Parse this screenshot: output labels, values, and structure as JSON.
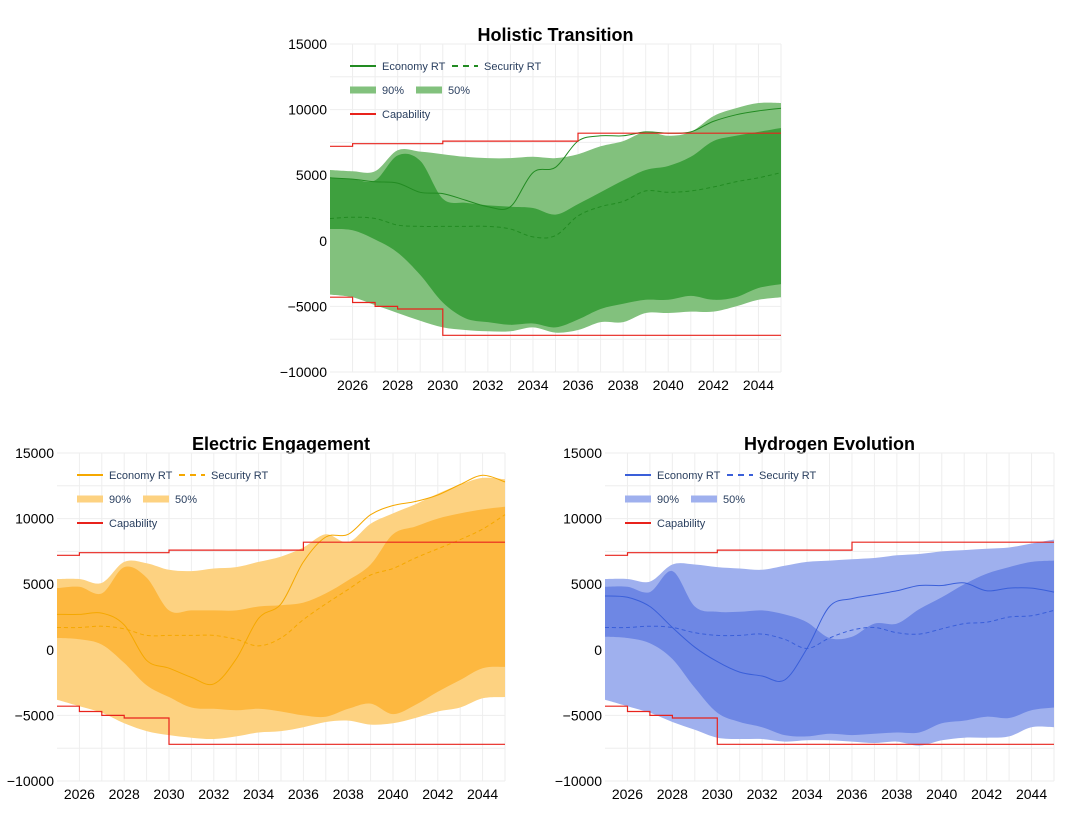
{
  "legend_labels": {
    "economy": "Economy RT",
    "security": "Security RT",
    "band90": "90%",
    "band50": "50%",
    "capability": "Capability"
  },
  "chart_data": [
    {
      "type": "area",
      "title": "Holistic Transition",
      "color": "#228b22",
      "band90_color": "#82c17d",
      "band50_color": "#3ea03e",
      "xlabel": "",
      "ylabel": "",
      "xlim": [
        2025,
        2045
      ],
      "ylim": [
        -10000,
        15000
      ],
      "x_ticks": [
        "2026",
        "2028",
        "2030",
        "2032",
        "2034",
        "2036",
        "2038",
        "2040",
        "2042",
        "2044"
      ],
      "y_ticks": [
        "15000",
        "10000",
        "5000",
        "0",
        "−5000",
        "−10000"
      ],
      "grid": true,
      "legend_position": "top-left",
      "x": [
        2025,
        2026,
        2027,
        2028,
        2029,
        2030,
        2031,
        2032,
        2033,
        2034,
        2035,
        2036,
        2037,
        2038,
        2039,
        2040,
        2041,
        2042,
        2043,
        2044,
        2045
      ],
      "economy": [
        4800,
        4700,
        4500,
        4400,
        3700,
        3600,
        3100,
        2600,
        2600,
        5200,
        5600,
        7600,
        8000,
        8000,
        8300,
        8200,
        8300,
        9100,
        9600,
        9900,
        10100
      ],
      "security": [
        1700,
        1800,
        1700,
        1200,
        1100,
        1100,
        1100,
        1100,
        900,
        300,
        400,
        1900,
        2600,
        3000,
        3800,
        3700,
        3800,
        4100,
        4500,
        4800,
        5200
      ],
      "band90_upper": [
        5400,
        5300,
        5300,
        6900,
        6800,
        6600,
        6400,
        6300,
        6300,
        6400,
        6300,
        6600,
        7200,
        7600,
        8300,
        8000,
        8300,
        9500,
        10100,
        10500,
        10500
      ],
      "band90_lower": [
        -4100,
        -4300,
        -4900,
        -5500,
        -6100,
        -6600,
        -6800,
        -6900,
        -6900,
        -6600,
        -7000,
        -6800,
        -6200,
        -6200,
        -5500,
        -5500,
        -5400,
        -5400,
        -5000,
        -4500,
        -4300
      ],
      "band50_upper": [
        4800,
        4700,
        4600,
        6500,
        6100,
        3200,
        2900,
        2700,
        2600,
        2500,
        2000,
        2800,
        3700,
        4600,
        5400,
        5700,
        6400,
        7600,
        8000,
        8300,
        8600
      ],
      "band50_lower": [
        900,
        800,
        100,
        -900,
        -2600,
        -4700,
        -5900,
        -6200,
        -6400,
        -6300,
        -6600,
        -6000,
        -5200,
        -4800,
        -4500,
        -4500,
        -4200,
        -4500,
        -4300,
        -3600,
        -3300
      ],
      "capability": [
        [
          2025,
          7200
        ],
        [
          2026,
          7200
        ],
        [
          2026,
          7400
        ],
        [
          2030,
          7400
        ],
        [
          2030,
          7600
        ],
        [
          2036,
          7600
        ],
        [
          2036,
          8200
        ],
        [
          2045,
          8200
        ]
      ],
      "capability_lower": [
        [
          2025,
          -4300
        ],
        [
          2026,
          -4300
        ],
        [
          2026,
          -4700
        ],
        [
          2027,
          -4700
        ],
        [
          2027,
          -5000
        ],
        [
          2028,
          -5000
        ],
        [
          2028,
          -5200
        ],
        [
          2030,
          -5200
        ],
        [
          2030,
          -7200
        ],
        [
          2045,
          -7200
        ]
      ]
    },
    {
      "type": "area",
      "title": "Electric Engagement",
      "color": "#f5a800",
      "band90_color": "#fdd281",
      "band50_color": "#fdb840",
      "xlabel": "",
      "ylabel": "",
      "xlim": [
        2025,
        2045
      ],
      "ylim": [
        -10000,
        15000
      ],
      "x_ticks": [
        "2026",
        "2028",
        "2030",
        "2032",
        "2034",
        "2036",
        "2038",
        "2040",
        "2042",
        "2044"
      ],
      "y_ticks": [
        "15000",
        "10000",
        "5000",
        "0",
        "−5000",
        "−10000"
      ],
      "grid": true,
      "legend_position": "top-left",
      "x": [
        2025,
        2026,
        2027,
        2028,
        2029,
        2030,
        2031,
        2032,
        2033,
        2034,
        2035,
        2036,
        2037,
        2038,
        2039,
        2040,
        2041,
        2042,
        2043,
        2044,
        2045
      ],
      "economy": [
        2700,
        2700,
        2800,
        1900,
        -800,
        -1400,
        -2100,
        -2600,
        -700,
        2400,
        3500,
        6700,
        8600,
        8800,
        10300,
        11000,
        11300,
        11800,
        12600,
        13300,
        12800
      ],
      "security": [
        1700,
        1700,
        1800,
        1600,
        1100,
        1100,
        1100,
        1100,
        800,
        300,
        900,
        2300,
        3500,
        4600,
        5700,
        6200,
        7000,
        7700,
        8400,
        9200,
        10300
      ],
      "band90_upper": [
        5400,
        5400,
        5100,
        6700,
        6600,
        6100,
        6000,
        6200,
        6300,
        6700,
        7100,
        7800,
        8800,
        8200,
        9600,
        10400,
        11100,
        11900,
        12600,
        13100,
        13000
      ],
      "band90_lower": [
        -3800,
        -4300,
        -4800,
        -5600,
        -6200,
        -6500,
        -6700,
        -6800,
        -6600,
        -6300,
        -6200,
        -5900,
        -5500,
        -5400,
        -5700,
        -5600,
        -5200,
        -4700,
        -4400,
        -3700,
        -3600
      ],
      "band50_upper": [
        4700,
        4800,
        4300,
        6300,
        5500,
        3000,
        3000,
        3000,
        3000,
        3300,
        3400,
        3600,
        4300,
        5300,
        6500,
        8800,
        9400,
        10000,
        10400,
        10700,
        10900
      ],
      "band50_lower": [
        900,
        800,
        400,
        -1000,
        -2700,
        -3600,
        -4400,
        -4500,
        -4600,
        -4500,
        -4700,
        -5000,
        -5100,
        -4500,
        -4100,
        -4900,
        -4200,
        -3200,
        -2300,
        -1400,
        -1300
      ],
      "capability": [
        [
          2025,
          7200
        ],
        [
          2026,
          7200
        ],
        [
          2026,
          7400
        ],
        [
          2030,
          7400
        ],
        [
          2030,
          7600
        ],
        [
          2036,
          7600
        ],
        [
          2036,
          8200
        ],
        [
          2045,
          8200
        ]
      ],
      "capability_lower": [
        [
          2025,
          -4300
        ],
        [
          2026,
          -4300
        ],
        [
          2026,
          -4700
        ],
        [
          2027,
          -4700
        ],
        [
          2027,
          -5000
        ],
        [
          2028,
          -5000
        ],
        [
          2028,
          -5200
        ],
        [
          2030,
          -5200
        ],
        [
          2030,
          -7200
        ],
        [
          2045,
          -7200
        ]
      ]
    },
    {
      "type": "area",
      "title": "Hydrogen Evolution",
      "color": "#3a5fd9",
      "band90_color": "#9fb0ee",
      "band50_color": "#6e87e4",
      "xlabel": "",
      "ylabel": "",
      "xlim": [
        2025,
        2045
      ],
      "ylim": [
        -10000,
        15000
      ],
      "x_ticks": [
        "2026",
        "2028",
        "2030",
        "2032",
        "2034",
        "2036",
        "2038",
        "2040",
        "2042",
        "2044"
      ],
      "y_ticks": [
        "15000",
        "10000",
        "5000",
        "0",
        "−5000",
        "−10000"
      ],
      "grid": true,
      "legend_position": "top-left",
      "x": [
        2025,
        2026,
        2027,
        2028,
        2029,
        2030,
        2031,
        2032,
        2033,
        2034,
        2035,
        2036,
        2037,
        2038,
        2039,
        2040,
        2041,
        2042,
        2043,
        2044,
        2045
      ],
      "economy": [
        4100,
        4000,
        3300,
        1700,
        200,
        -900,
        -1700,
        -2000,
        -2300,
        100,
        3300,
        3900,
        4200,
        4500,
        4900,
        4900,
        5100,
        4500,
        4700,
        4700,
        4400
      ],
      "security": [
        1700,
        1700,
        1800,
        1700,
        1300,
        1100,
        1100,
        1200,
        800,
        100,
        900,
        1500,
        1700,
        1300,
        1200,
        1600,
        2000,
        2100,
        2500,
        2600,
        3000
      ],
      "band90_upper": [
        5400,
        5400,
        5200,
        6500,
        6500,
        6300,
        6200,
        6100,
        6400,
        6700,
        6800,
        6900,
        7000,
        7200,
        7300,
        7500,
        7600,
        7700,
        7800,
        8100,
        8400
      ],
      "band90_lower": [
        -3800,
        -4300,
        -4800,
        -5500,
        -6100,
        -6700,
        -6800,
        -6800,
        -7000,
        -6900,
        -6900,
        -7000,
        -7100,
        -7000,
        -7300,
        -6900,
        -6700,
        -6700,
        -6600,
        -5900,
        -5900
      ],
      "band50_upper": [
        4800,
        4800,
        4400,
        6000,
        3300,
        2900,
        2900,
        3000,
        2700,
        2100,
        900,
        1000,
        2000,
        2000,
        3100,
        4000,
        5000,
        5800,
        6300,
        6700,
        6800
      ],
      "band50_lower": [
        1000,
        900,
        500,
        -700,
        -2900,
        -4800,
        -5500,
        -5900,
        -6500,
        -6600,
        -6400,
        -6500,
        -6400,
        -6300,
        -6300,
        -5600,
        -5400,
        -5100,
        -5200,
        -4600,
        -4400
      ],
      "capability": [
        [
          2025,
          7200
        ],
        [
          2026,
          7200
        ],
        [
          2026,
          7400
        ],
        [
          2030,
          7400
        ],
        [
          2030,
          7600
        ],
        [
          2036,
          7600
        ],
        [
          2036,
          8200
        ],
        [
          2045,
          8200
        ]
      ],
      "capability_lower": [
        [
          2025,
          -4300
        ],
        [
          2026,
          -4300
        ],
        [
          2026,
          -4700
        ],
        [
          2027,
          -4700
        ],
        [
          2027,
          -5000
        ],
        [
          2028,
          -5000
        ],
        [
          2028,
          -5200
        ],
        [
          2030,
          -5200
        ],
        [
          2030,
          -7200
        ],
        [
          2045,
          -7200
        ]
      ]
    }
  ]
}
